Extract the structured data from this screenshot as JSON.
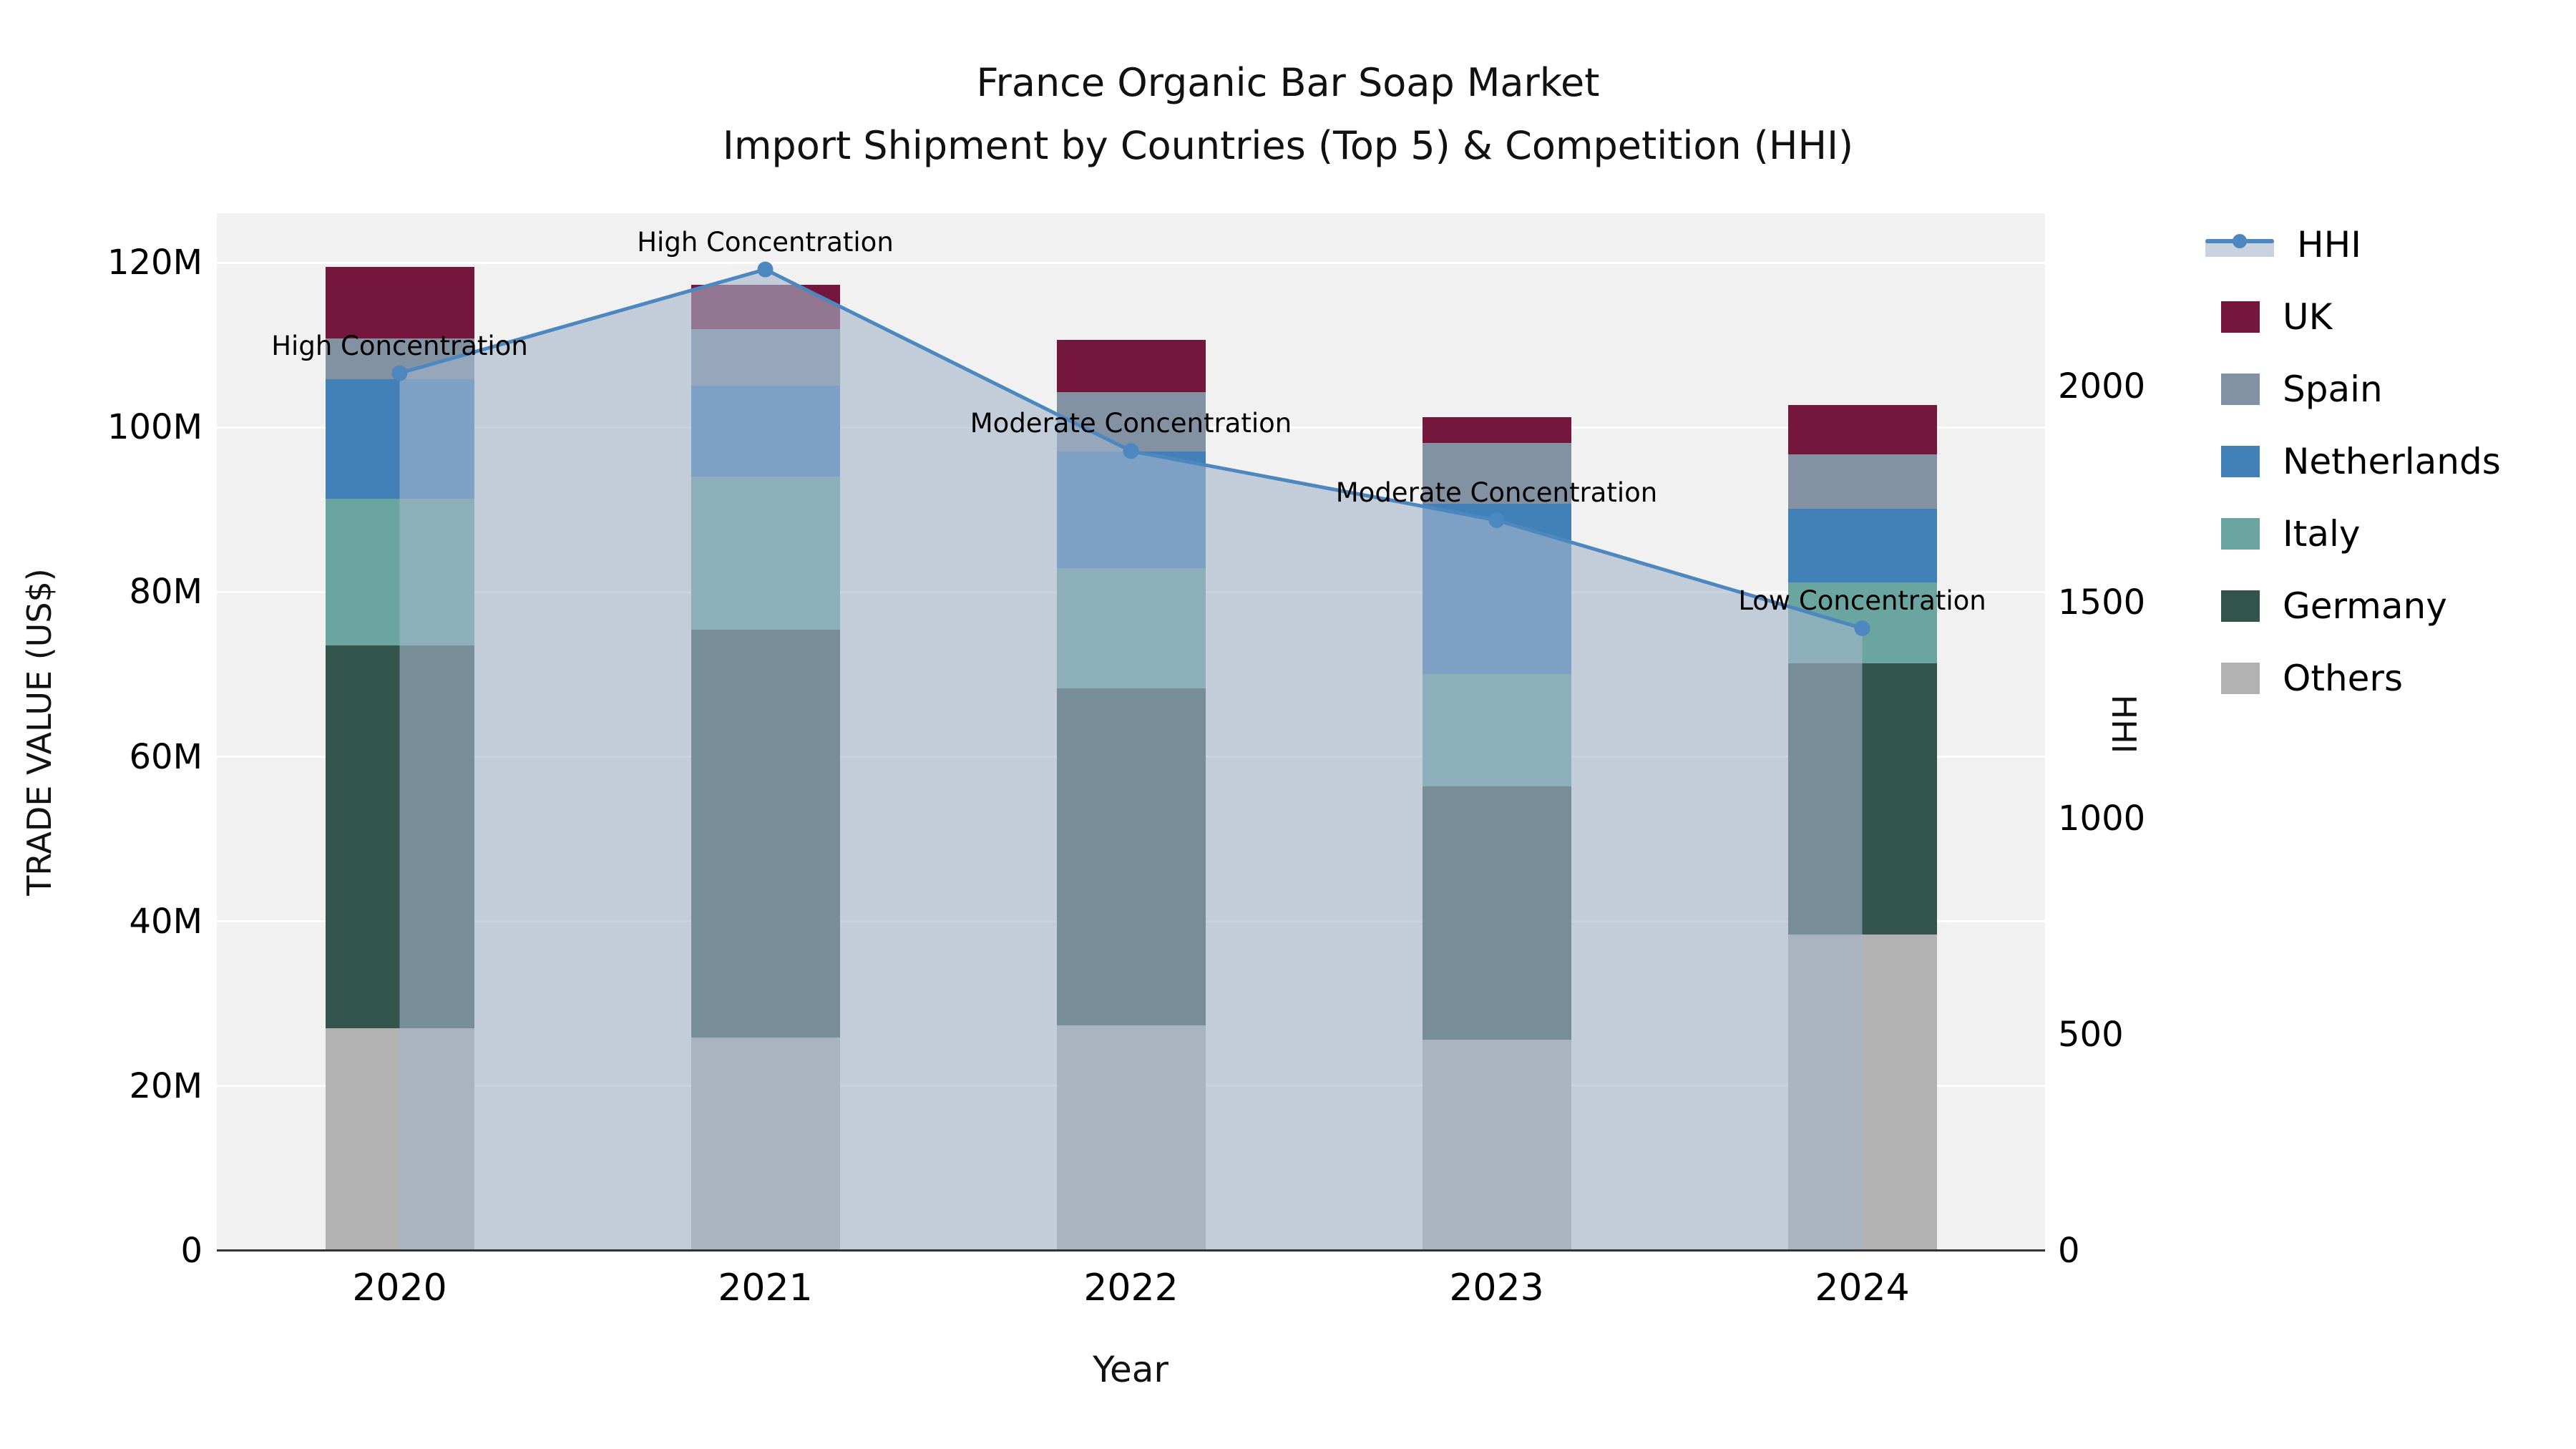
{
  "chart_data": {
    "type": "bar",
    "subtype": "stacked_bars_with_line_overlay_and_area",
    "title": "France Organic Bar Soap Market",
    "subtitle": "Import Shipment by Countries (Top 5) & Competition (HHI)",
    "xlabel": "Year",
    "ylabel_left": "TRADE VALUE (US$)",
    "ylabel_right": "HHI",
    "categories": [
      "2020",
      "2021",
      "2022",
      "2023",
      "2024"
    ],
    "unit_left": "millions US$",
    "series": [
      {
        "name": "Others",
        "color": "#b2b2b2",
        "values": [
          27.0,
          25.9,
          27.4,
          25.6,
          38.4
        ]
      },
      {
        "name": "Germany",
        "color": "#33544c",
        "values": [
          46.5,
          49.5,
          40.9,
          30.8,
          32.9
        ]
      },
      {
        "name": "Italy",
        "color": "#6aa5a0",
        "values": [
          17.8,
          18.6,
          14.6,
          13.6,
          9.9
        ]
      },
      {
        "name": "Netherlands",
        "color": "#4280b8",
        "values": [
          14.5,
          11.1,
          14.2,
          20.7,
          8.9
        ]
      },
      {
        "name": "Spain",
        "color": "#8292a3",
        "values": [
          5.0,
          6.8,
          7.2,
          7.4,
          6.6
        ]
      },
      {
        "name": "UK",
        "color": "#75173c",
        "values": [
          8.7,
          5.4,
          6.3,
          3.1,
          6.0
        ]
      }
    ],
    "line_series": {
      "name": "HHI",
      "color": "#4c87bf",
      "area_color": "rgba(165,182,203,0.6)",
      "values": [
        2030,
        2270,
        1850,
        1690,
        1440
      ]
    },
    "annotations": [
      {
        "x": "2020",
        "text": "High Concentration"
      },
      {
        "x": "2021",
        "text": "High Concentration"
      },
      {
        "x": "2022",
        "text": "Moderate Concentration"
      },
      {
        "x": "2023",
        "text": "Moderate Concentration"
      },
      {
        "x": "2024",
        "text": "Low Concentration"
      }
    ],
    "y_left_ticks": [
      "0",
      "20M",
      "40M",
      "60M",
      "80M",
      "100M",
      "120M"
    ],
    "y_left_tick_values": [
      0,
      20,
      40,
      60,
      80,
      100,
      120
    ],
    "ylim_left": [
      0,
      126
    ],
    "y_right_ticks": [
      "0",
      "500",
      "1000",
      "1500",
      "2000"
    ],
    "y_right_tick_values": [
      0,
      500,
      1000,
      1500,
      2000
    ],
    "ylim_right": [
      0,
      2400
    ],
    "grid": true,
    "legend_position": "right",
    "legend": [
      {
        "name": "HHI",
        "type": "line",
        "color": "#4c87bf"
      },
      {
        "name": "UK",
        "type": "swatch",
        "color": "#75173c"
      },
      {
        "name": "Spain",
        "type": "swatch",
        "color": "#8292a3"
      },
      {
        "name": "Netherlands",
        "type": "swatch",
        "color": "#4280b8"
      },
      {
        "name": "Italy",
        "type": "swatch",
        "color": "#6aa5a0"
      },
      {
        "name": "Germany",
        "type": "swatch",
        "color": "#33544c"
      },
      {
        "name": "Others",
        "type": "swatch",
        "color": "#b2b2b2"
      }
    ]
  }
}
